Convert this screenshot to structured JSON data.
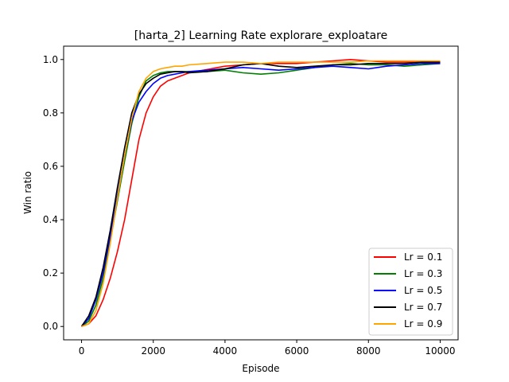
{
  "chart_data": {
    "type": "line",
    "title": "[harta_2] Learning Rate  explorare_exploatare",
    "xlabel": "Episode",
    "ylabel": "Win ratio",
    "xlim": [
      -500,
      10500
    ],
    "ylim": [
      -0.05,
      1.05
    ],
    "xticks": [
      0,
      2000,
      4000,
      6000,
      8000,
      10000
    ],
    "xtick_labels": [
      "0",
      "2000",
      "4000",
      "6000",
      "8000",
      "10000"
    ],
    "yticks": [
      0.0,
      0.2,
      0.4,
      0.6,
      0.8,
      1.0
    ],
    "ytick_labels": [
      "0.0",
      "0.2",
      "0.4",
      "0.6",
      "0.8",
      "1.0"
    ],
    "grid": false,
    "legend_position": "lower-right",
    "series": [
      {
        "name": "Lr = 0.1",
        "color": "#ff0000",
        "x": [
          0,
          200,
          400,
          600,
          800,
          1000,
          1200,
          1400,
          1600,
          1800,
          2000,
          2200,
          2400,
          2600,
          2800,
          3000,
          3200,
          3400,
          3600,
          3800,
          4000,
          4500,
          5000,
          5500,
          6000,
          6500,
          7000,
          7500,
          8000,
          8500,
          9000,
          9500,
          10000
        ],
        "y": [
          0.0,
          0.01,
          0.04,
          0.1,
          0.18,
          0.28,
          0.4,
          0.55,
          0.7,
          0.8,
          0.86,
          0.9,
          0.92,
          0.93,
          0.94,
          0.95,
          0.955,
          0.96,
          0.965,
          0.97,
          0.975,
          0.98,
          0.985,
          0.985,
          0.985,
          0.99,
          0.995,
          1.0,
          0.995,
          0.99,
          0.99,
          0.99,
          0.99
        ]
      },
      {
        "name": "Lr = 0.3",
        "color": "#008000",
        "x": [
          0,
          200,
          400,
          600,
          800,
          1000,
          1200,
          1400,
          1600,
          1800,
          2000,
          2200,
          2400,
          2600,
          2800,
          3000,
          3500,
          4000,
          4500,
          5000,
          5500,
          6000,
          6500,
          7000,
          7500,
          8000,
          8500,
          9000,
          9500,
          10000
        ],
        "y": [
          0.0,
          0.02,
          0.08,
          0.18,
          0.32,
          0.47,
          0.62,
          0.76,
          0.86,
          0.92,
          0.94,
          0.95,
          0.955,
          0.955,
          0.955,
          0.955,
          0.955,
          0.96,
          0.95,
          0.945,
          0.95,
          0.96,
          0.97,
          0.98,
          0.985,
          0.98,
          0.98,
          0.975,
          0.98,
          0.985
        ]
      },
      {
        "name": "Lr = 0.5",
        "color": "#0000ff",
        "x": [
          0,
          200,
          400,
          600,
          800,
          1000,
          1200,
          1400,
          1600,
          1800,
          2000,
          2200,
          2400,
          2600,
          2800,
          3000,
          3500,
          4000,
          4500,
          5000,
          5500,
          6000,
          6500,
          7000,
          7500,
          8000,
          8500,
          9000,
          9500,
          10000
        ],
        "y": [
          0.0,
          0.03,
          0.1,
          0.2,
          0.34,
          0.49,
          0.64,
          0.77,
          0.84,
          0.88,
          0.91,
          0.93,
          0.94,
          0.945,
          0.95,
          0.955,
          0.96,
          0.965,
          0.97,
          0.965,
          0.96,
          0.965,
          0.97,
          0.975,
          0.97,
          0.965,
          0.975,
          0.98,
          0.985,
          0.985
        ]
      },
      {
        "name": "Lr = 0.7",
        "color": "#000000",
        "x": [
          0,
          200,
          400,
          600,
          800,
          1000,
          1200,
          1400,
          1600,
          1800,
          2000,
          2200,
          2400,
          2600,
          2800,
          3000,
          3500,
          4000,
          4500,
          5000,
          5500,
          6000,
          6500,
          7000,
          7500,
          8000,
          8500,
          9000,
          9500,
          10000
        ],
        "y": [
          0.0,
          0.04,
          0.11,
          0.22,
          0.36,
          0.52,
          0.67,
          0.8,
          0.87,
          0.91,
          0.93,
          0.945,
          0.95,
          0.955,
          0.955,
          0.95,
          0.955,
          0.965,
          0.98,
          0.985,
          0.975,
          0.97,
          0.975,
          0.98,
          0.98,
          0.985,
          0.985,
          0.985,
          0.99,
          0.99
        ]
      },
      {
        "name": "Lr = 0.9",
        "color": "#ffa500",
        "x": [
          0,
          200,
          400,
          600,
          800,
          1000,
          1200,
          1400,
          1600,
          1800,
          2000,
          2200,
          2400,
          2600,
          2800,
          3000,
          3500,
          4000,
          4500,
          5000,
          5500,
          6000,
          6500,
          7000,
          7500,
          8000,
          8500,
          9000,
          9500,
          10000
        ],
        "y": [
          0.0,
          0.01,
          0.06,
          0.16,
          0.31,
          0.48,
          0.64,
          0.78,
          0.88,
          0.93,
          0.955,
          0.965,
          0.97,
          0.975,
          0.975,
          0.98,
          0.985,
          0.99,
          0.99,
          0.985,
          0.99,
          0.99,
          0.99,
          0.99,
          0.99,
          0.995,
          0.995,
          0.995,
          0.995,
          0.995
        ]
      }
    ]
  }
}
